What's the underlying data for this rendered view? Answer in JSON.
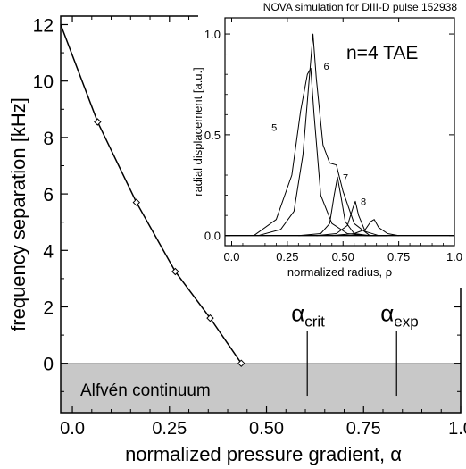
{
  "chart_data": [
    {
      "type": "line",
      "title": "",
      "xlabel": "normalized pressure gradient, α",
      "ylabel": "frequency separation [kHz]",
      "xlim": [
        -0.03,
        1.0
      ],
      "ylim": [
        -1.75,
        12.3
      ],
      "x_ticks": [
        "0.0",
        "0.25",
        "0.50",
        "0.75",
        "1.0"
      ],
      "x_tick_values": [
        0.0,
        0.25,
        0.5,
        0.75,
        1.0
      ],
      "y_ticks": [
        "0",
        "2",
        "4",
        "6",
        "8",
        "10",
        "12"
      ],
      "y_tick_values": [
        0,
        2,
        4,
        6,
        8,
        10,
        12
      ],
      "series": [
        {
          "x": [
            -0.03,
            0.065,
            0.165,
            0.265,
            0.355,
            0.435
          ],
          "y": [
            12.0,
            8.55,
            5.7,
            3.25,
            1.6,
            0.0
          ]
        }
      ],
      "shaded_region": {
        "label": "Alfvén continuum",
        "y_range": [
          -1.75,
          0
        ],
        "color": "#c8c8c8"
      },
      "markers": [
        {
          "label": "α",
          "subscript": "crit",
          "x": 0.605
        },
        {
          "label": "α",
          "subscript": "exp",
          "x": 0.835
        }
      ],
      "grid": false
    },
    {
      "type": "line",
      "title": "NOVA simulation for DIII-D pulse 152938",
      "annotation": "n=4 TAE",
      "xlabel": "normalized radius, ρ",
      "ylabel": "radial displacement [a.u.]",
      "xlim": [
        -0.03,
        1.0
      ],
      "ylim": [
        -0.05,
        1.08
      ],
      "x_ticks": [
        "0.0",
        "0.25",
        "0.50",
        "0.75",
        "1.0"
      ],
      "x_tick_values": [
        0.0,
        0.25,
        0.5,
        0.75,
        1.0
      ],
      "y_ticks": [
        "0.0",
        "0.5",
        "1.0"
      ],
      "y_tick_values": [
        0.0,
        0.5,
        1.0
      ],
      "series": [
        {
          "name": "5",
          "x": [
            0.1,
            0.2,
            0.27,
            0.31,
            0.34,
            0.355,
            0.37,
            0.4,
            0.45,
            0.52,
            0.6,
            0.7
          ],
          "y": [
            0.0,
            0.08,
            0.3,
            0.62,
            0.8,
            0.83,
            0.6,
            0.2,
            0.06,
            0.01,
            0.0,
            0.0
          ]
        },
        {
          "name": "6",
          "x": [
            0.12,
            0.22,
            0.28,
            0.32,
            0.35,
            0.365,
            0.38,
            0.41,
            0.44,
            0.47,
            0.5,
            0.55,
            0.62,
            0.7
          ],
          "y": [
            0.0,
            0.03,
            0.12,
            0.4,
            0.8,
            1.0,
            0.78,
            0.45,
            0.36,
            0.35,
            0.22,
            0.06,
            0.0,
            0.0
          ]
        },
        {
          "name": "7",
          "x": [
            0.3,
            0.4,
            0.44,
            0.46,
            0.475,
            0.49,
            0.51,
            0.55,
            0.62
          ],
          "y": [
            0.0,
            0.01,
            0.06,
            0.2,
            0.29,
            0.2,
            0.07,
            0.01,
            0.0
          ]
        },
        {
          "name": "8",
          "x": [
            0.38,
            0.47,
            0.52,
            0.545,
            0.555,
            0.57,
            0.6,
            0.66
          ],
          "y": [
            0.0,
            0.01,
            0.05,
            0.14,
            0.17,
            0.1,
            0.02,
            0.0
          ]
        },
        {
          "name": "",
          "x": [
            0.45,
            0.55,
            0.6,
            0.625,
            0.64,
            0.66,
            0.7,
            0.75
          ],
          "y": [
            0.0,
            0.01,
            0.03,
            0.07,
            0.08,
            0.04,
            0.01,
            0.0
          ]
        }
      ],
      "grid": false
    }
  ]
}
